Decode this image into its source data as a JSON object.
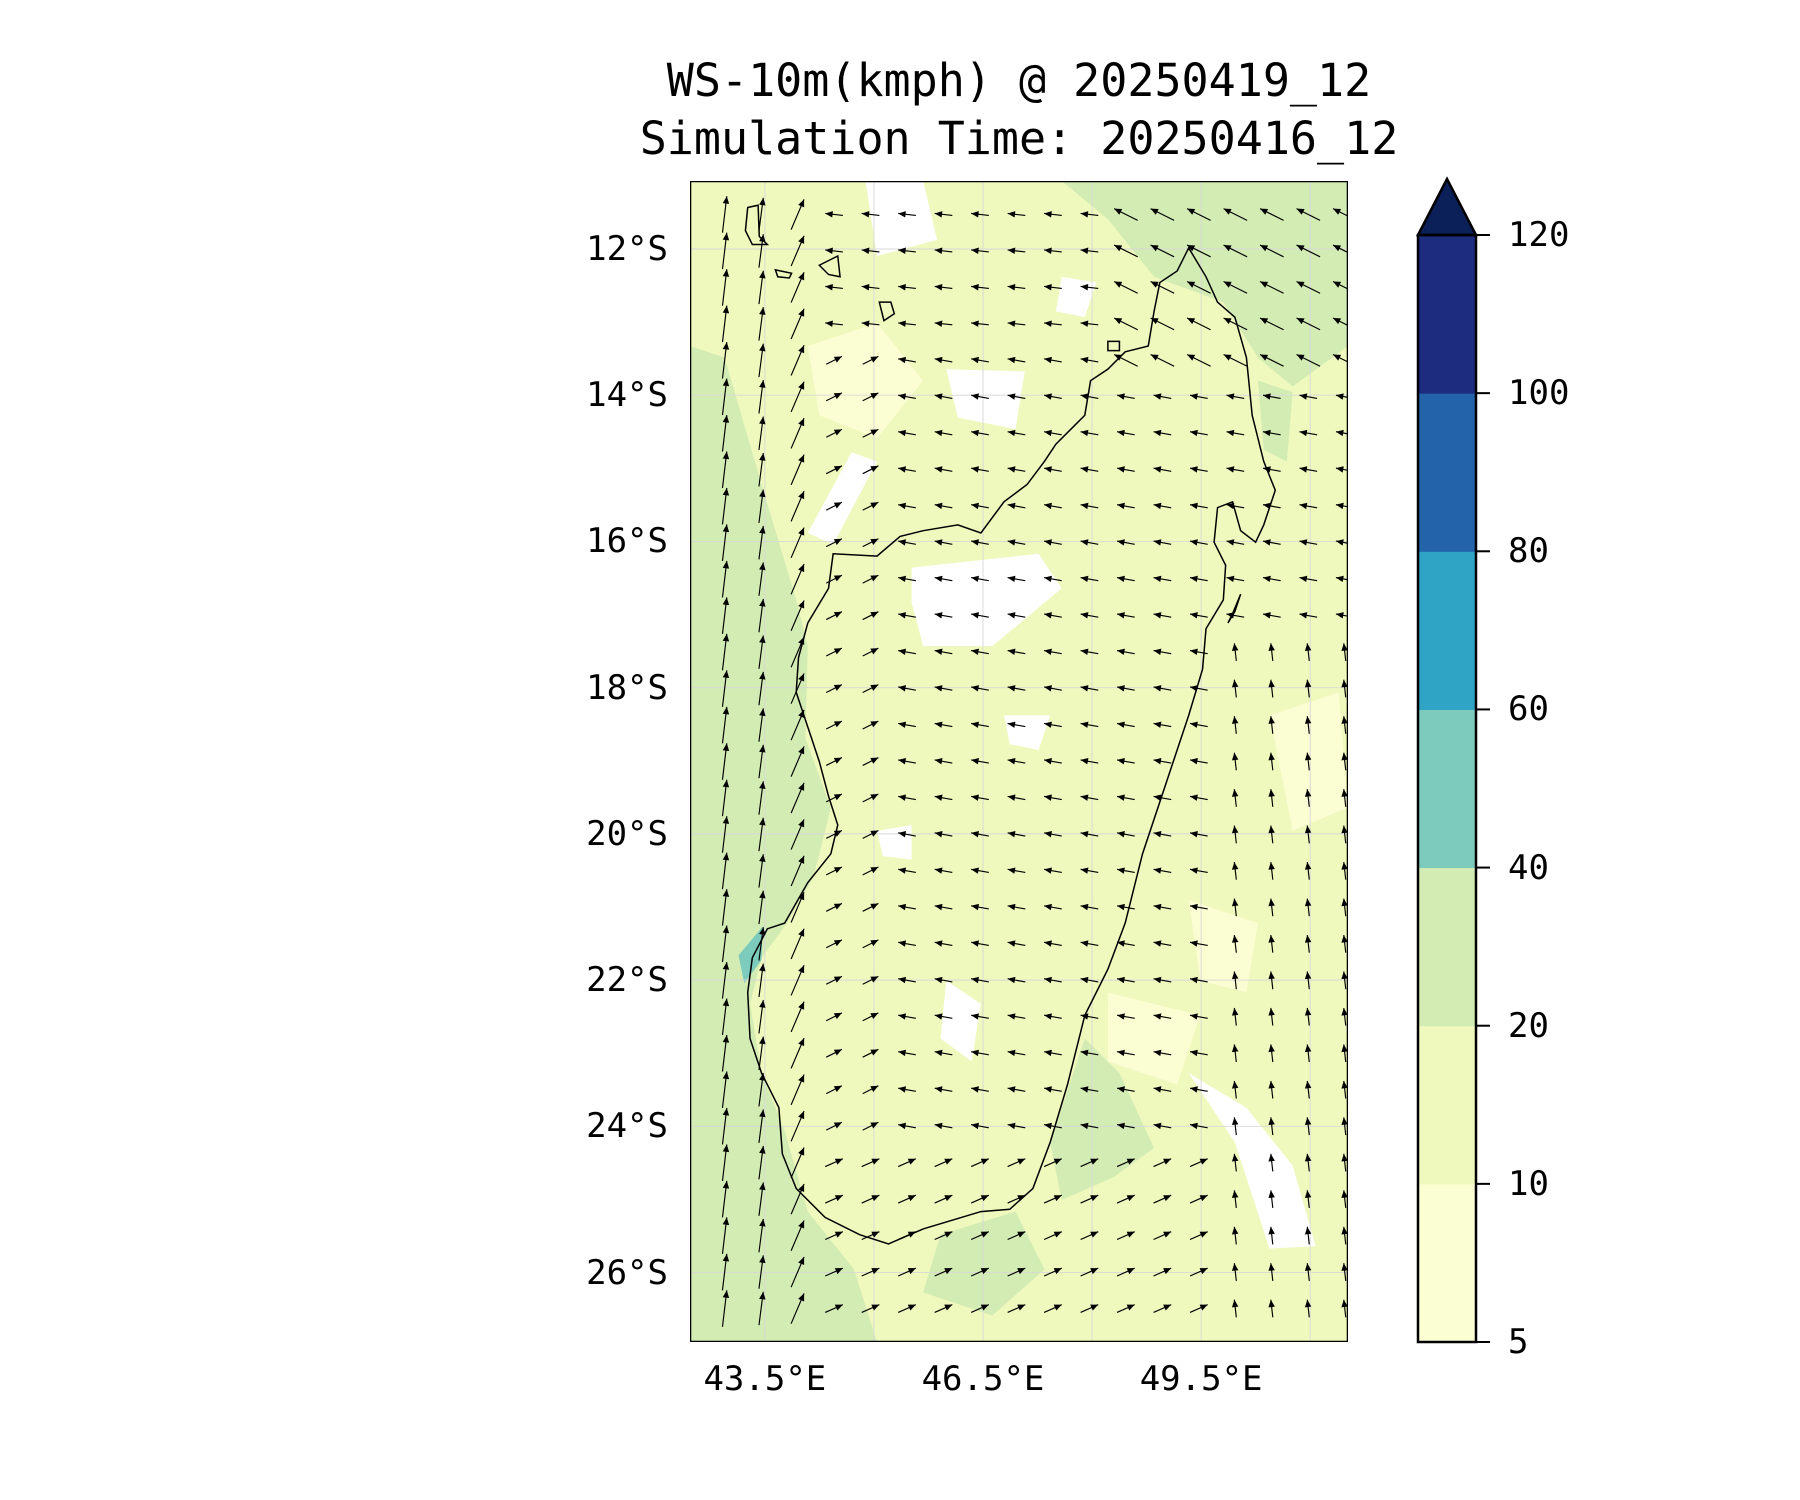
{
  "chart_data": {
    "type": "contourf+quiver map",
    "title": "WS-10m(kmph) @ 20250419_12",
    "subtitle": "Simulation Time: 20250416_12",
    "variable": "10 m wind speed (km/h)",
    "xlim": [
      42.47,
      51.52
    ],
    "ylim": [
      -26.95,
      -11.07
    ],
    "lat_ticks": [
      {
        "value": -12,
        "label": "12°S"
      },
      {
        "value": -14,
        "label": "14°S"
      },
      {
        "value": -16,
        "label": "16°S"
      },
      {
        "value": -18,
        "label": "18°S"
      },
      {
        "value": -20,
        "label": "20°S"
      },
      {
        "value": -22,
        "label": "22°S"
      },
      {
        "value": -24,
        "label": "24°S"
      },
      {
        "value": -26,
        "label": "26°S"
      }
    ],
    "lon_ticks": [
      {
        "value": 43.5,
        "label": "43.5°E"
      },
      {
        "value": 46.5,
        "label": "46.5°E"
      },
      {
        "value": 49.5,
        "label": "49.5°E"
      }
    ],
    "grid": true,
    "colorbar": {
      "levels": [
        5,
        10,
        20,
        40,
        60,
        80,
        100,
        120
      ],
      "labels": [
        "5",
        "10",
        "20",
        "40",
        "60",
        "80",
        "100",
        "120"
      ],
      "colors": [
        "#fbfdd2",
        "#eff8bd",
        "#d2ecb4",
        "#7ccbbc",
        "#2fa4c4",
        "#2363a9",
        "#1d2c7f"
      ],
      "extend_color": "#0b1f59",
      "extend": "max",
      "placement": "right"
    },
    "field_colors": {
      "below5": "#ffffff",
      "c5_10": "#fbfdd2",
      "c10_20": "#eff8bd",
      "c20_40": "#d2ecb4",
      "c40_60": "#7ccbbc"
    }
  }
}
